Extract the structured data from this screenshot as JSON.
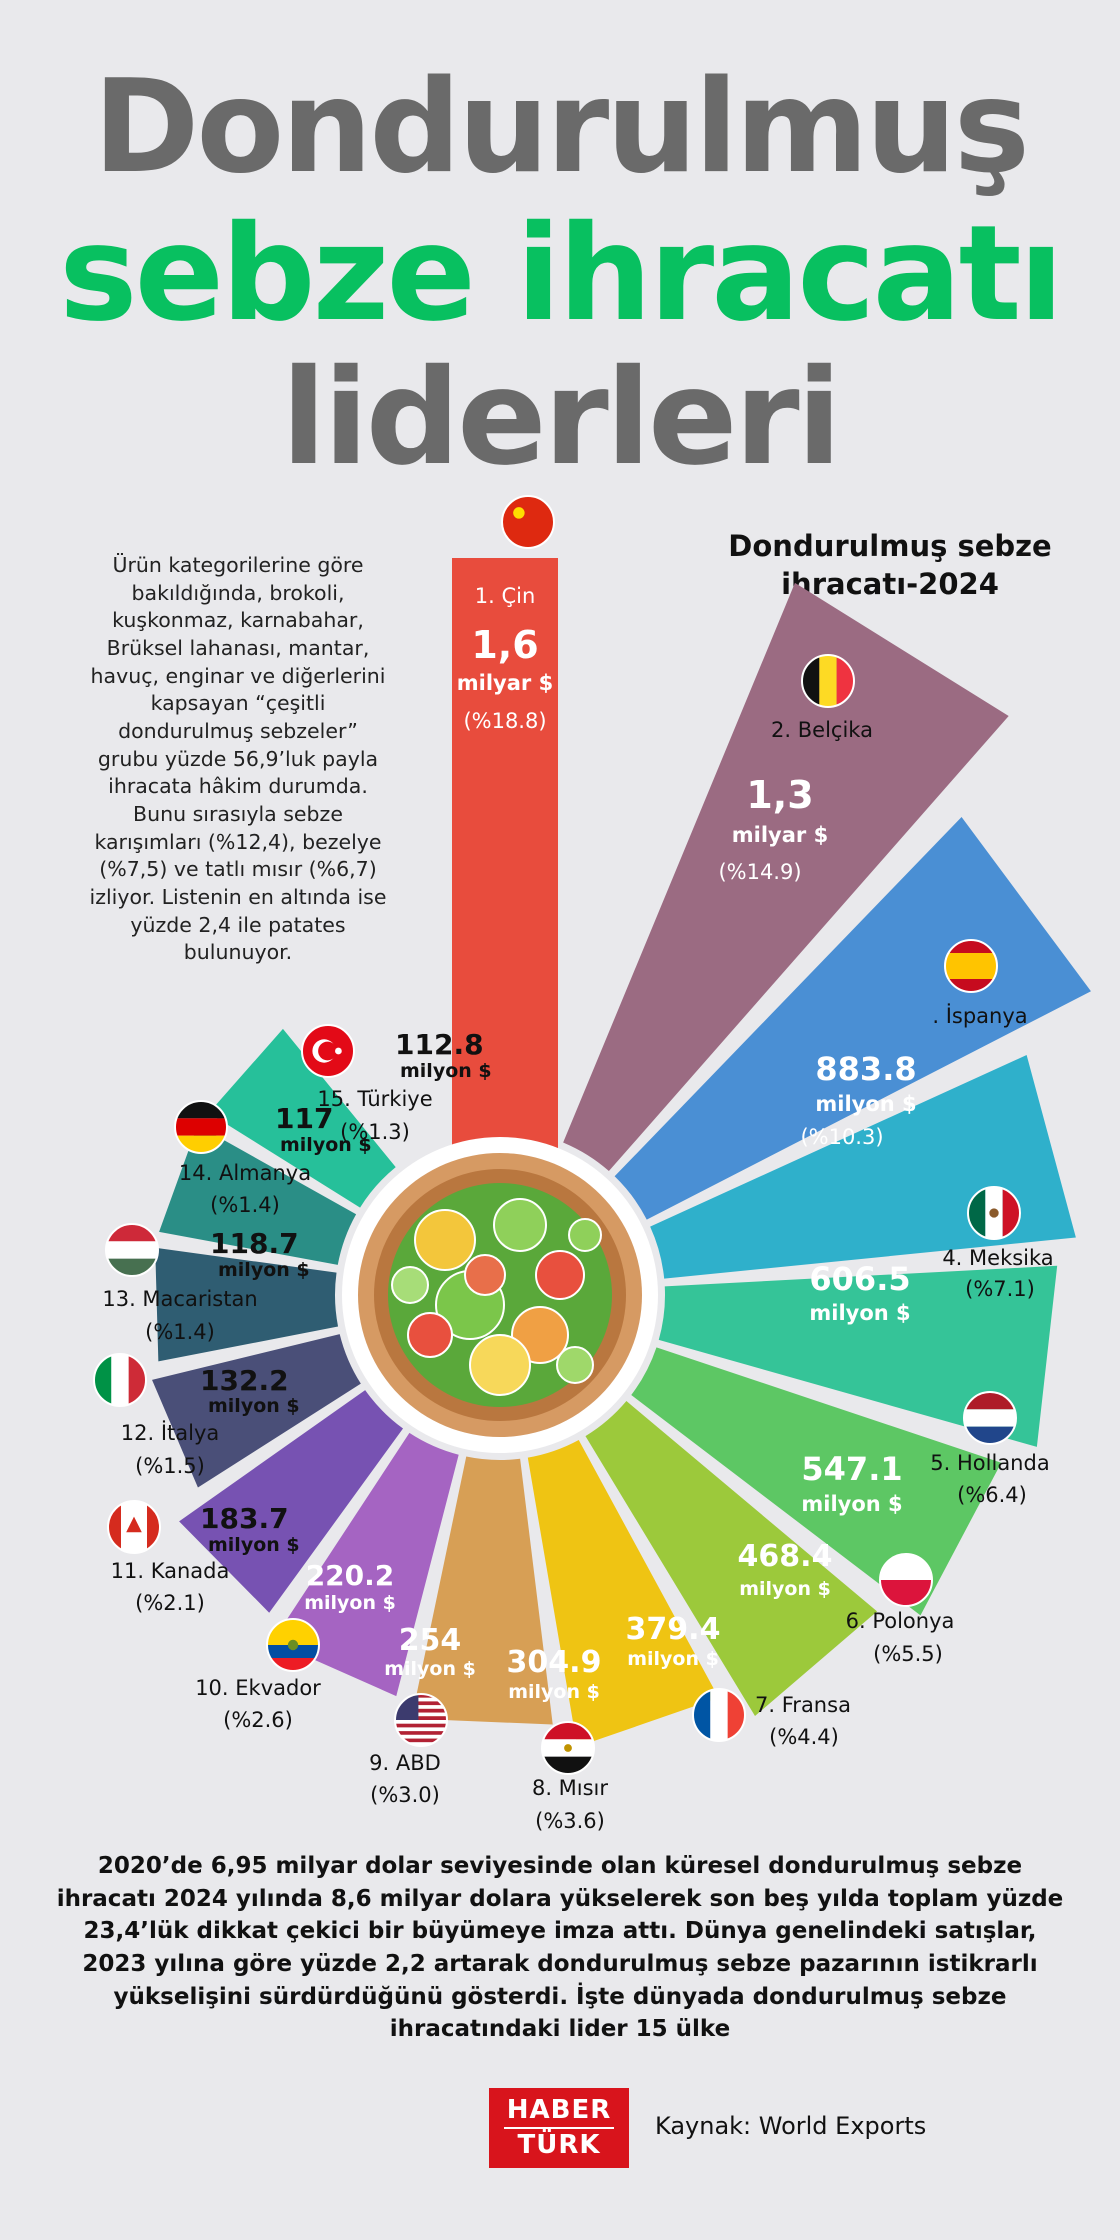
{
  "title": {
    "line1": "Dondurulmuş",
    "line2": "sebze ihracatı",
    "line3": "liderleri"
  },
  "chart_data": {
    "type": "bar",
    "layout": "radial",
    "title": "Dondurulmuş sebze ihracatı-2024",
    "categories": [
      "Çin",
      "Belçika",
      "İspanya",
      "Meksika",
      "Hollanda",
      "Polonya",
      "Fransa",
      "Mısır",
      "ABD",
      "Ekvador",
      "Kanada",
      "İtalya",
      "Macaristan",
      "Almanya",
      "Türkiye"
    ],
    "values": [
      1600,
      1300,
      883.8,
      606.5,
      547.1,
      468.4,
      379.4,
      304.9,
      254,
      220.2,
      183.7,
      132.2,
      118.7,
      117,
      112.8
    ],
    "unit": "milyon $",
    "shares": [
      18.8,
      14.9,
      10.3,
      7.1,
      6.4,
      5.5,
      4.4,
      3.6,
      3.0,
      2.6,
      2.1,
      1.5,
      1.4,
      1.4,
      1.3
    ],
    "entries": [
      {
        "rank_label": "1. Çin",
        "value_label": "1,6",
        "unit_label": "milyar $",
        "share_label": "(%18.8)",
        "color": "#e84c3d",
        "flag": "china-flag"
      },
      {
        "rank_label": "2. Belçika",
        "value_label": "1,3",
        "unit_label": "milyar $",
        "share_label": "(%14.9)",
        "color": "#9b6b82",
        "flag": "belgium-flag"
      },
      {
        "rank_label": ". İspanya",
        "value_label": "883.8",
        "unit_label": "milyon $",
        "share_label": "(%10.3)",
        "color": "#4a8fd4",
        "flag": "spain-flag"
      },
      {
        "rank_label": "4. Meksika",
        "value_label": "606.5",
        "unit_label": "milyon $",
        "share_label": "(%7.1)",
        "color": "#2fb0cb",
        "flag": "mexico-flag"
      },
      {
        "rank_label": "5. Hollanda",
        "value_label": "547.1",
        "unit_label": "milyon $",
        "share_label": "(%6.4)",
        "color": "#35c498",
        "flag": "netherlands-flag"
      },
      {
        "rank_label": "6. Polonya",
        "value_label": "468.4",
        "unit_label": "milyon $",
        "share_label": "(%5.5)",
        "color": "#5dc764",
        "flag": "poland-flag"
      },
      {
        "rank_label": "7. Fransa",
        "value_label": "379.4",
        "unit_label": "milyon $",
        "share_label": "(%4.4)",
        "color": "#9cc93b",
        "flag": "france-flag"
      },
      {
        "rank_label": "8. Mısır",
        "value_label": "304.9",
        "unit_label": "milyon $",
        "share_label": "(%3.6)",
        "color": "#efc413",
        "flag": "egypt-flag"
      },
      {
        "rank_label": "9. ABD",
        "value_label": "254",
        "unit_label": "milyon $",
        "share_label": "(%3.0)",
        "color": "#d79f55",
        "flag": "usa-flag"
      },
      {
        "rank_label": "10. Ekvador",
        "value_label": "220.2",
        "unit_label": "milyon $",
        "share_label": "(%2.6)",
        "color": "#a564c2",
        "flag": "ecuador-flag"
      },
      {
        "rank_label": "11. Kanada",
        "value_label": "183.7",
        "unit_label": "milyon $",
        "share_label": "(%2.1)",
        "color": "#7752b2",
        "flag": "canada-flag"
      },
      {
        "rank_label": "12. İtalya",
        "value_label": "132.2",
        "unit_label": "milyon $",
        "share_label": "(%1.5)",
        "color": "#4a4f78",
        "flag": "italy-flag"
      },
      {
        "rank_label": "13. Macaristan",
        "value_label": "118.7",
        "unit_label": "milyon $",
        "share_label": "(%1.4)",
        "color": "#2f5d72",
        "flag": "hungary-flag"
      },
      {
        "rank_label": "14. Almanya",
        "value_label": "117",
        "unit_label": "milyon $",
        "share_label": "(%1.4)",
        "color": "#2a8e86",
        "flag": "germany-flag"
      },
      {
        "rank_label": "15. Türkiye",
        "value_label": "112.8",
        "unit_label": "milyon $",
        "share_label": "(%1.3)",
        "color": "#26c09a",
        "flag": "turkey-flag"
      }
    ]
  },
  "intro_text": "Ürün kategorilerine göre bakıldığında, brokoli, kuşkonmaz, karnabahar, Brüksel lahanası, mantar, havuç, enginar ve diğerlerini kapsayan “çeşitli dondurulmuş sebzeler” grubu yüzde 56,9’luk payla ihracata hâkim durumda. Bunu sırasıyla sebze karışımları (%12,4), bezelye (%7,5) ve tatlı mısır (%6,7) izliyor. Listenin en altında ise yüzde 2,4 ile patates bulunuyor.",
  "footer_text": "2020’de 6,95 milyar dolar seviyesinde olan küresel dondurulmuş sebze ihracatı 2024 yılında 8,6 milyar dolara yükselerek son beş yılda toplam yüzde 23,4’lük dikkat çekici bir büyümeye imza attı. Dünya genelindeki satışlar, 2023 yılına göre yüzde 2,2 artarak dondurulmuş sebze pazarının istikrarlı yükselişini sürdürdüğünü gösterdi. İşte dünyada dondurulmuş sebze ihracatındaki lider 15 ülke",
  "logo": {
    "line1": "HABER",
    "line2": "TÜRK"
  },
  "source": "Kaynak: World Exports"
}
